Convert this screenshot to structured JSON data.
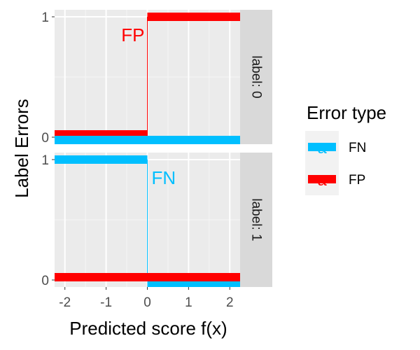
{
  "chart_data": {
    "type": "step",
    "xlabel": "Predicted score f(x)",
    "ylabel": "Label Errors",
    "xlim": [
      -2.25,
      2.25
    ],
    "x_ticks": [
      -2,
      -1,
      0,
      1,
      2
    ],
    "y_ticks": [
      0,
      1
    ],
    "colors": {
      "FN": "#00BFFF",
      "FP": "#FF0000"
    },
    "legend": {
      "title": "Error type",
      "position": "right",
      "entries": [
        {
          "key": "FN",
          "label": "FN",
          "glyph": "a"
        },
        {
          "key": "FP",
          "label": "FP",
          "glyph": "a"
        }
      ]
    },
    "panels": [
      {
        "strip": "label: 0",
        "series": [
          {
            "type": "FP",
            "segments": [
              {
                "x": [
                  -2.25,
                  0
                ],
                "y": 0
              },
              {
                "x": [
                  0,
                  2.25
                ],
                "y": 1
              }
            ]
          },
          {
            "type": "FN",
            "segments": [
              {
                "x": [
                  -2.25,
                  2.25
                ],
                "y": 0
              }
            ]
          }
        ],
        "annotation": {
          "text": "FP",
          "x": -0.4,
          "y": 0.9,
          "type": "FP"
        }
      },
      {
        "strip": "label: 1",
        "series": [
          {
            "type": "FN",
            "segments": [
              {
                "x": [
                  -2.25,
                  0
                ],
                "y": 1
              },
              {
                "x": [
                  0,
                  2.25
                ],
                "y": 0
              }
            ]
          },
          {
            "type": "FP",
            "segments": [
              {
                "x": [
                  -2.25,
                  2.25
                ],
                "y": 0
              }
            ]
          }
        ],
        "annotation": {
          "text": "FN",
          "x": 0.4,
          "y": 0.9,
          "type": "FN"
        }
      }
    ]
  }
}
